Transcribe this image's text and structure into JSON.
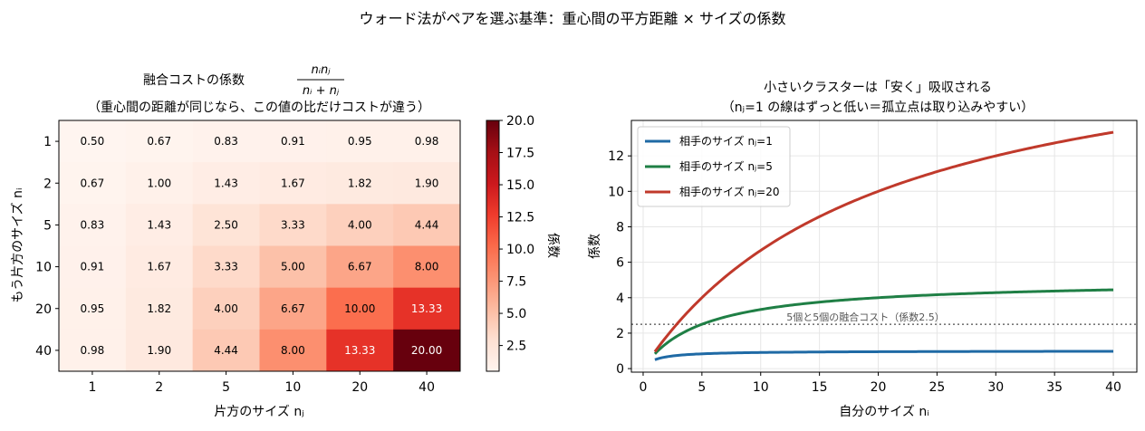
{
  "suptitle": "ウォード法がペアを選ぶ基準：重心間の平方距離 × サイズの係数",
  "chart_data": [
    {
      "type": "heatmap",
      "title_line1": "融合コストの係数",
      "title_formula_num": "nᵢnⱼ",
      "title_formula_den": "nᵢ + nⱼ",
      "title_line2": "（重心間の距離が同じなら、この値の比だけコストが違う）",
      "xlabel": "片方のサイズ nⱼ",
      "ylabel": "もう片方のサイズ nᵢ",
      "x_categories": [
        "1",
        "2",
        "5",
        "10",
        "20",
        "40"
      ],
      "y_categories": [
        "1",
        "2",
        "5",
        "10",
        "20",
        "40"
      ],
      "values": [
        [
          0.5,
          0.67,
          0.83,
          0.91,
          0.95,
          0.98
        ],
        [
          0.67,
          1.0,
          1.43,
          1.67,
          1.82,
          1.9
        ],
        [
          0.83,
          1.43,
          2.5,
          3.33,
          4.0,
          4.44
        ],
        [
          0.91,
          1.67,
          3.33,
          5.0,
          6.67,
          8.0
        ],
        [
          0.95,
          1.82,
          4.0,
          6.67,
          10.0,
          13.33
        ],
        [
          0.98,
          1.9,
          4.44,
          8.0,
          13.33,
          20.0
        ]
      ],
      "value_labels": [
        [
          "0.50",
          "0.67",
          "0.83",
          "0.91",
          "0.95",
          "0.98"
        ],
        [
          "0.67",
          "1.00",
          "1.43",
          "1.67",
          "1.82",
          "1.90"
        ],
        [
          "0.83",
          "1.43",
          "2.50",
          "3.33",
          "4.00",
          "4.44"
        ],
        [
          "0.91",
          "1.67",
          "3.33",
          "5.00",
          "6.67",
          "8.00"
        ],
        [
          "0.95",
          "1.82",
          "4.00",
          "6.67",
          "10.00",
          "13.33"
        ],
        [
          "0.98",
          "1.90",
          "4.44",
          "8.00",
          "13.33",
          "20.00"
        ]
      ],
      "colormap": "Reds",
      "color_range": [
        0.5,
        20.0
      ],
      "colorbar_label": "係数",
      "colorbar_ticks": [
        2.5,
        5.0,
        7.5,
        10.0,
        12.5,
        15.0,
        17.5,
        20.0
      ],
      "colorbar_tick_labels": [
        "2.5",
        "5.0",
        "7.5",
        "10.0",
        "12.5",
        "15.0",
        "17.5",
        "20.0"
      ]
    },
    {
      "type": "line",
      "title_line1": "小さいクラスターは「安く」吸収される",
      "title_line2": "（nⱼ=1 の線はずっと低い＝孤立点は取り込みやすい）",
      "xlabel": "自分のサイズ nᵢ",
      "ylabel": "係数",
      "xlim": [
        -1,
        42
      ],
      "ylim": [
        -0.2,
        14.0
      ],
      "xticks": [
        0,
        5,
        10,
        15,
        20,
        25,
        30,
        35,
        40
      ],
      "xtick_labels": [
        "0",
        "5",
        "10",
        "15",
        "20",
        "25",
        "30",
        "35",
        "40"
      ],
      "yticks": [
        0,
        2,
        4,
        6,
        8,
        10,
        12
      ],
      "ytick_labels": [
        "0",
        "2",
        "4",
        "6",
        "8",
        "10",
        "12"
      ],
      "grid": true,
      "legend_position": "top-left",
      "series": [
        {
          "name": "相手のサイズ nⱼ=1",
          "nj": 1,
          "color": "#1f6aa5",
          "x": [
            1,
            2,
            3,
            4,
            5,
            6,
            7,
            8,
            9,
            10,
            12,
            14,
            16,
            18,
            20,
            25,
            30,
            35,
            40
          ],
          "y": [
            0.5,
            0.67,
            0.75,
            0.8,
            0.83,
            0.86,
            0.88,
            0.89,
            0.9,
            0.91,
            0.92,
            0.93,
            0.94,
            0.95,
            0.95,
            0.96,
            0.97,
            0.97,
            0.98
          ]
        },
        {
          "name": "相手のサイズ nⱼ=5",
          "nj": 5,
          "color": "#1f7f45",
          "x": [
            1,
            2,
            3,
            4,
            5,
            6,
            7,
            8,
            9,
            10,
            12,
            14,
            16,
            18,
            20,
            25,
            30,
            35,
            40
          ],
          "y": [
            0.83,
            1.43,
            1.88,
            2.22,
            2.5,
            2.73,
            2.92,
            3.08,
            3.21,
            3.33,
            3.53,
            3.68,
            3.81,
            3.91,
            4.0,
            4.17,
            4.29,
            4.38,
            4.44
          ]
        },
        {
          "name": "相手のサイズ nⱼ=20",
          "nj": 20,
          "color": "#c0392b",
          "x": [
            1,
            2,
            3,
            4,
            5,
            6,
            7,
            8,
            9,
            10,
            12,
            14,
            16,
            18,
            20,
            25,
            30,
            35,
            40
          ],
          "y": [
            0.95,
            1.82,
            2.61,
            3.33,
            4.0,
            4.62,
            5.19,
            5.71,
            6.21,
            6.67,
            7.5,
            8.24,
            8.89,
            9.47,
            10.0,
            11.11,
            12.0,
            12.73,
            13.33
          ]
        }
      ],
      "reference_line": {
        "y": 2.5,
        "label": "5個と5個の融合コスト（係数2.5）",
        "color": "#777777"
      }
    }
  ]
}
